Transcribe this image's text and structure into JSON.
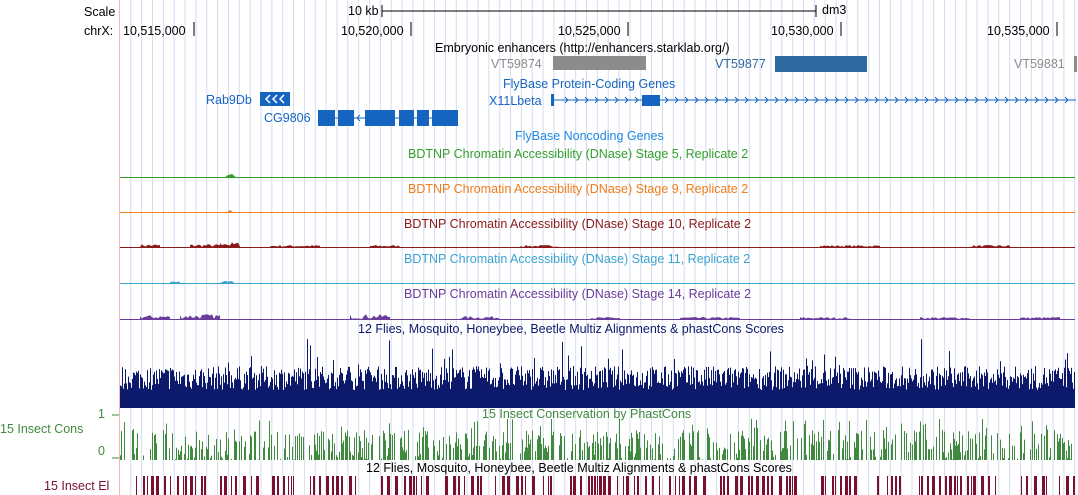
{
  "header": {
    "scale_label": "Scale",
    "chrom_label": "chrX:",
    "scale_bar_label": "10 kb",
    "assembly": "dm3",
    "positions": [
      "10,515,000",
      "10,520,000",
      "10,525,000",
      "10,530,000",
      "10,535,000"
    ]
  },
  "tracks": {
    "enhancers": {
      "title": "Embryonic enhancers (http://enhancers.starklab.org/)",
      "items": [
        {
          "label": "VT59874",
          "color": "#8c8c8c"
        },
        {
          "label": "VT59877",
          "color": "#2f6aa0"
        },
        {
          "label": "VT59881",
          "color": "#8c8c8c"
        }
      ]
    },
    "flybase_coding": {
      "title": "FlyBase Protein-Coding Genes",
      "color": "#1565c0",
      "genes": [
        {
          "label": "Rab9Db"
        },
        {
          "label": "CG9806"
        },
        {
          "label": "X11Lbeta"
        }
      ]
    },
    "flybase_noncoding": {
      "title": "FlyBase Noncoding Genes",
      "color": "#1e88e5"
    },
    "dnase": [
      {
        "title": "BDTNP Chromatin Accessibility (DNase) Stage 5, Replicate 2",
        "color": "#33a02c"
      },
      {
        "title": "BDTNP Chromatin Accessibility (DNase) Stage 9, Replicate 2",
        "color": "#f07c1a"
      },
      {
        "title": "BDTNP Chromatin Accessibility (DNase) Stage 10, Replicate 2",
        "color": "#8b1a1a"
      },
      {
        "title": "BDTNP Chromatin Accessibility (DNase) Stage 11, Replicate 2",
        "color": "#3ba3d0"
      },
      {
        "title": "BDTNP Chromatin Accessibility (DNase) Stage 14, Replicate 2",
        "color": "#6a3d9a"
      }
    ],
    "multiz": {
      "title": "12 Flies, Mosquito, Honeybee, Beetle Multiz Alignments & phastCons Scores",
      "color": "#0d1a6b"
    },
    "phastcons": {
      "title": "15 Insect Conservation by PhastCons",
      "side_label": "15 Insect Cons",
      "y_max": "1",
      "y_min": "0",
      "color": "#3f8a3f"
    },
    "elements": {
      "title": "12 Flies, Mosquito, Honeybee, Beetle Multiz Alignments & phastCons Scores",
      "side_label": "15 Insect El",
      "color": "#7a1030"
    }
  }
}
